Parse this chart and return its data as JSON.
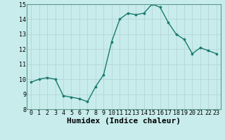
{
  "x": [
    0,
    1,
    2,
    3,
    4,
    5,
    6,
    7,
    8,
    9,
    10,
    11,
    12,
    13,
    14,
    15,
    16,
    17,
    18,
    19,
    20,
    21,
    22,
    23
  ],
  "y": [
    9.8,
    10.0,
    10.1,
    10.0,
    8.9,
    8.8,
    8.7,
    8.5,
    9.5,
    10.3,
    12.5,
    14.0,
    14.4,
    14.3,
    14.4,
    15.0,
    14.8,
    13.8,
    13.0,
    12.65,
    11.7,
    12.1,
    11.9,
    11.7
  ],
  "xlabel": "Humidex (Indice chaleur)",
  "ylim": [
    8,
    15
  ],
  "xlim": [
    -0.5,
    23.5
  ],
  "yticks": [
    8,
    9,
    10,
    11,
    12,
    13,
    14,
    15
  ],
  "xticks": [
    0,
    1,
    2,
    3,
    4,
    5,
    6,
    7,
    8,
    9,
    10,
    11,
    12,
    13,
    14,
    15,
    16,
    17,
    18,
    19,
    20,
    21,
    22,
    23
  ],
  "line_color": "#1a7a6e",
  "marker_color": "#1a7a6e",
  "bg_color": "#c8ecec",
  "grid_color": "#b8d8d8",
  "tick_label_fontsize": 6.0,
  "xlabel_fontsize": 8.0
}
